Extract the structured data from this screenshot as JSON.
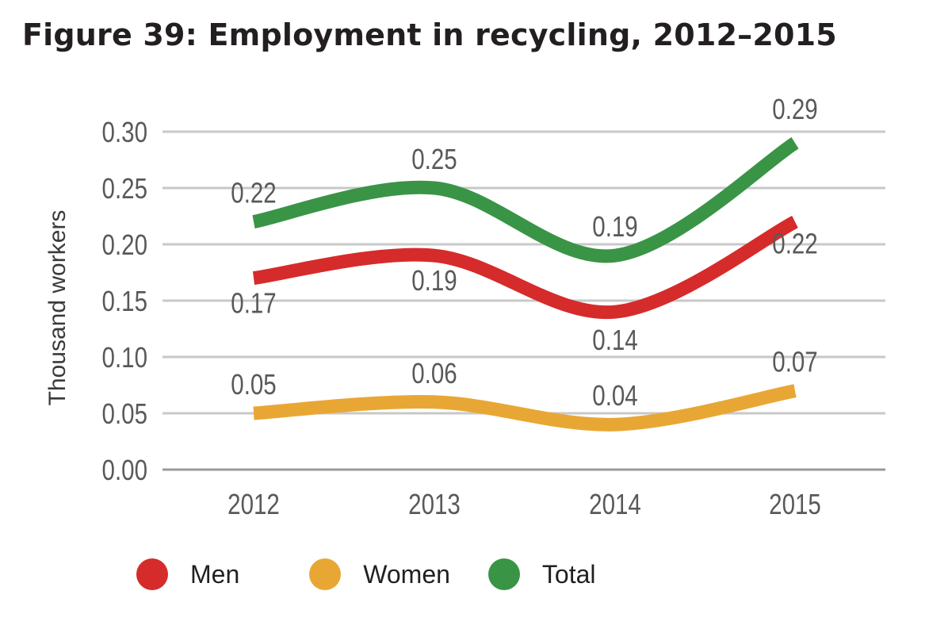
{
  "title": "Figure 39: Employment in recycling, 2012–2015",
  "chart_data": {
    "type": "line",
    "title": "Figure 39: Employment in recycling, 2012–2015",
    "xlabel": "",
    "ylabel": "Thousand workers",
    "categories": [
      "2012",
      "2013",
      "2014",
      "2015"
    ],
    "ylim": [
      0,
      0.3
    ],
    "yticks": [
      "0.00",
      "0.05",
      "0.10",
      "0.15",
      "0.20",
      "0.25",
      "0.30"
    ],
    "grid": true,
    "legend_position": "bottom-left",
    "series": [
      {
        "name": "Men",
        "color": "#d62b2b",
        "values": [
          0.17,
          0.19,
          0.14,
          0.22
        ],
        "labels": [
          "0.17",
          "0.19",
          "0.14",
          "0.22"
        ]
      },
      {
        "name": "Women",
        "color": "#e8a735",
        "values": [
          0.05,
          0.06,
          0.04,
          0.07
        ],
        "labels": [
          "0.05",
          "0.06",
          "0.04",
          "0.07"
        ]
      },
      {
        "name": "Total",
        "color": "#3a9446",
        "values": [
          0.22,
          0.25,
          0.19,
          0.29
        ],
        "labels": [
          "0.22",
          "0.25",
          "0.19",
          "0.29"
        ]
      }
    ]
  }
}
